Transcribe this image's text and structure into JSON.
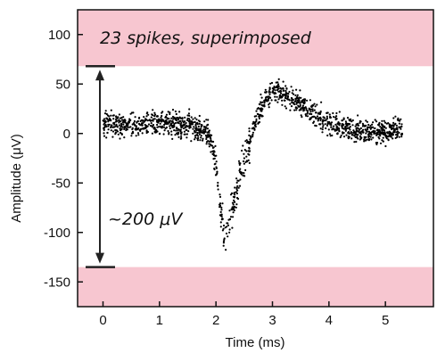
{
  "chart_data": {
    "type": "scatter",
    "title": "",
    "xlabel": "Time (ms)",
    "ylabel": "Amplitude (μV)",
    "xlim": [
      -0.45,
      5.85
    ],
    "ylim": [
      -175,
      125
    ],
    "x_ticks": [
      0,
      1,
      2,
      3,
      4,
      5
    ],
    "y_ticks": [
      100,
      50,
      0,
      -50,
      -100,
      -150
    ],
    "grid": false,
    "shaded_bands": [
      {
        "from": 68,
        "to": 125,
        "color": "#f7c6d0"
      },
      {
        "from": -175,
        "to": -135,
        "color": "#f7c6d0"
      }
    ],
    "annotations": {
      "top_text": "23 spikes, superimposed",
      "amplitude_text": "~200 μV",
      "amplitude_range": [
        68,
        -135
      ]
    },
    "series": [
      {
        "marker_color": "#000000",
        "trace_count": 23,
        "mean_waveform": {
          "x": [
            0.0,
            0.3,
            0.6,
            0.9,
            1.2,
            1.5,
            1.8,
            1.9,
            2.0,
            2.05,
            2.1,
            2.15,
            2.2,
            2.3,
            2.4,
            2.5,
            2.6,
            2.7,
            2.8,
            2.9,
            3.0,
            3.1,
            3.2,
            3.4,
            3.6,
            3.8,
            4.0,
            4.3,
            4.6,
            5.0,
            5.3
          ],
          "y": [
            10,
            8,
            9,
            9,
            10,
            8,
            3,
            -5,
            -30,
            -55,
            -85,
            -108,
            -100,
            -75,
            -48,
            -28,
            -8,
            12,
            26,
            36,
            42,
            43,
            40,
            33,
            25,
            17,
            12,
            6,
            3,
            2,
            5
          ]
        },
        "noise_amplitude": 13
      }
    ]
  }
}
